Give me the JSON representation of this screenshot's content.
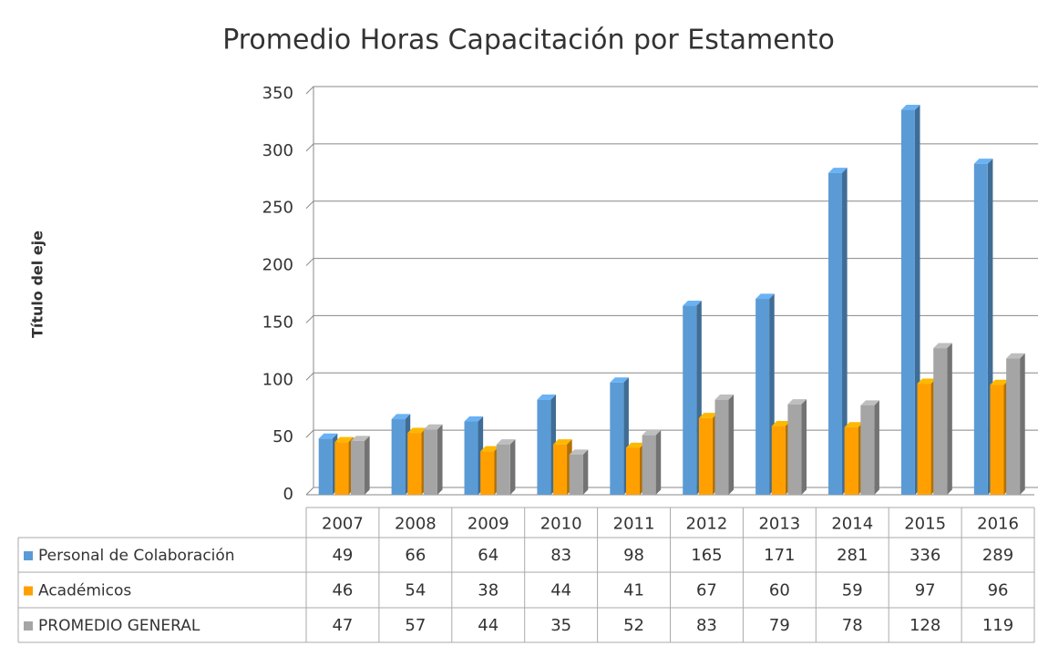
{
  "chart_data": {
    "type": "bar3d",
    "title": "Promedio Horas Capacitación por Estamento",
    "y_label": "Título del eje",
    "categories": [
      "2007",
      "2008",
      "2009",
      "2010",
      "2011",
      "2012",
      "2013",
      "2014",
      "2015",
      "2016"
    ],
    "series": [
      {
        "name": "Personal de Colaboración",
        "color": "#5b9bd5",
        "values": [
          49,
          66,
          64,
          83,
          98,
          165,
          171,
          281,
          336,
          289
        ]
      },
      {
        "name": "Académicos",
        "color": "#ffa000",
        "values": [
          46,
          54,
          38,
          44,
          41,
          67,
          60,
          59,
          97,
          96
        ]
      },
      {
        "name": "PROMEDIO GENERAL",
        "color": "#a5a5a5",
        "values": [
          47,
          57,
          44,
          35,
          52,
          83,
          79,
          78,
          128,
          119
        ]
      }
    ],
    "ylim": [
      0,
      350
    ],
    "yticks": [
      0,
      50,
      100,
      150,
      200,
      250,
      300,
      350
    ],
    "grid": true
  }
}
